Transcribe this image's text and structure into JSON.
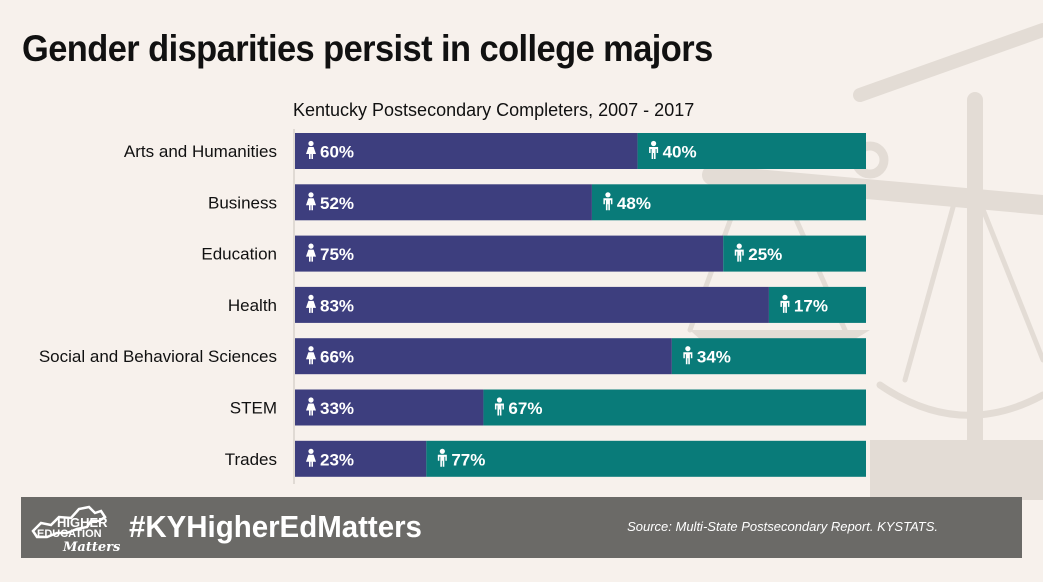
{
  "title": "Gender disparities persist in college majors",
  "footer": {
    "hashtag": "#KYHigherEdMatters",
    "source": "Source: Multi-State Postsecondary Report. KYSTATS.",
    "logo_line1": "HIGHER",
    "logo_line2": "EDUCATION",
    "logo_line3": "Matters"
  },
  "colors": {
    "female": "#3d3e7e",
    "male": "#097b79",
    "background": "#f7f1ec",
    "footer": "#6b6a67"
  },
  "icons": {
    "female": "female-person-icon",
    "male": "male-person-icon",
    "background": "scales-of-justice-icon"
  },
  "chart_data": {
    "type": "bar",
    "orientation": "horizontal",
    "stacked": true,
    "title": "Kentucky Postsecondary Completers, 2007 - 2017",
    "categories": [
      "Arts and Humanities",
      "Business",
      "Education",
      "Health",
      "Social and Behavioral Sciences",
      "STEM",
      "Trades"
    ],
    "series": [
      {
        "values": [
          60,
          52,
          75,
          83,
          66,
          33,
          23
        ],
        "labels": [
          "60%",
          "52%",
          "75%",
          "83%",
          "66%",
          "33%",
          "23%"
        ],
        "icon": "female-person-icon"
      },
      {
        "values": [
          40,
          48,
          25,
          17,
          34,
          67,
          77
        ],
        "labels": [
          "40%",
          "48%",
          "25%",
          "17%",
          "34%",
          "67%",
          "77%"
        ],
        "icon": "male-person-icon"
      }
    ],
    "xlim": [
      0,
      100
    ],
    "unit": "%",
    "grid": false,
    "legend": "none"
  }
}
